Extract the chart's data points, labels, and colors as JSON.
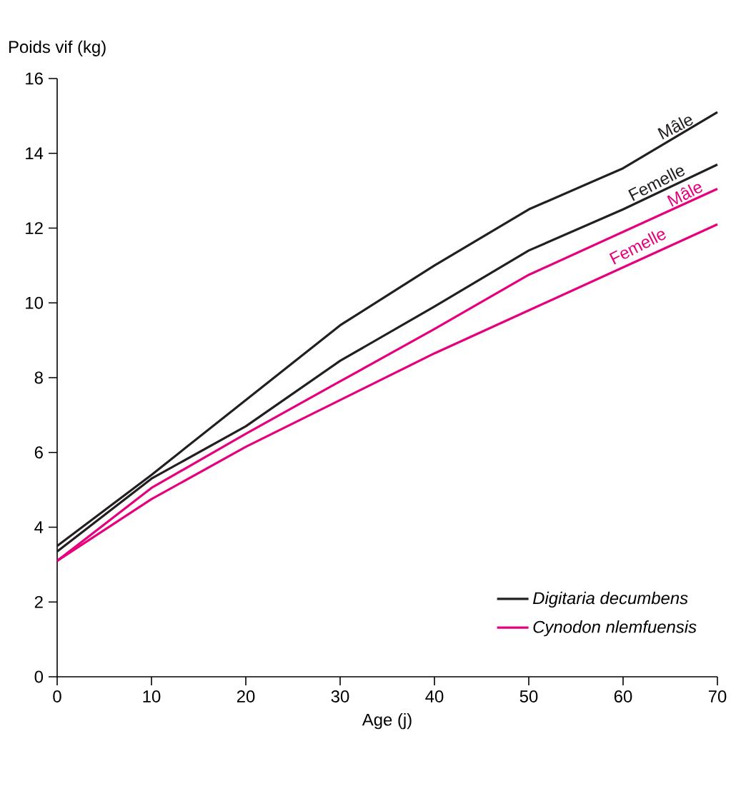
{
  "chart_data": {
    "type": "line",
    "xlabel": "Age (j)",
    "ylabel": "Poids vif (kg)",
    "x": [
      0,
      10,
      20,
      30,
      40,
      50,
      60,
      70
    ],
    "series": [
      {
        "name": "Digitaria decumbens",
        "color": "#231f20",
        "values": [
          3.5,
          5.4,
          7.4,
          9.4,
          11.0,
          12.5,
          13.6,
          15.1
        ]
      },
      {
        "color": "#231f20",
        "values": [
          3.35,
          5.3,
          6.7,
          8.45,
          9.9,
          11.4,
          12.5,
          13.7
        ]
      },
      {
        "name": "Cynodon nlemfuensis",
        "color": "#e6007e",
        "values": [
          3.1,
          5.05,
          6.5,
          7.9,
          9.3,
          10.75,
          11.9,
          13.05
        ]
      },
      {
        "color": "#e6007e",
        "values": [
          3.1,
          4.75,
          6.15,
          7.4,
          8.65,
          9.8,
          10.95,
          12.1
        ]
      }
    ],
    "annotations": [
      {
        "text": "Mâle",
        "x": 66,
        "y": 14.5
      },
      {
        "text": "Femelle",
        "x": 64,
        "y": 13.0
      },
      {
        "text": "Mâle",
        "x": 67,
        "y": 12.7
      },
      {
        "text": "Femelle",
        "x": 62,
        "y": 11.3
      }
    ],
    "xlim": [
      0,
      70
    ],
    "ylim": [
      0,
      16
    ],
    "xticks": [
      0,
      10,
      20,
      30,
      40,
      50,
      60,
      70
    ],
    "yticks": [
      0,
      2,
      4,
      6,
      8,
      10,
      12,
      14,
      16
    ],
    "legend": "bottom right",
    "grid": false,
    "marker": "none",
    "line_style": "solid"
  }
}
